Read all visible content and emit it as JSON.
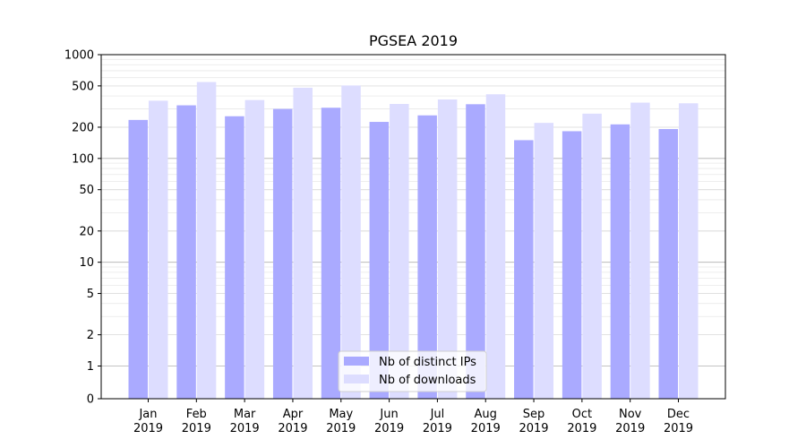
{
  "chart_data": {
    "type": "bar",
    "title": "PGSEA 2019",
    "xlabel": "",
    "ylabel": "",
    "y_scale": "symlog",
    "ylim": [
      0,
      1000
    ],
    "y_ticks": [
      {
        "value": 0,
        "label": "0"
      },
      {
        "value": 1,
        "label": "1"
      },
      {
        "value": 2,
        "label": "2"
      },
      {
        "value": 5,
        "label": "5"
      },
      {
        "value": 10,
        "label": "10"
      },
      {
        "value": 20,
        "label": "20"
      },
      {
        "value": 50,
        "label": "50"
      },
      {
        "value": 100,
        "label": "100"
      },
      {
        "value": 200,
        "label": "200"
      },
      {
        "value": 500,
        "label": "500"
      },
      {
        "value": 1000,
        "label": "1000"
      }
    ],
    "categories": [
      [
        "Jan",
        "2019"
      ],
      [
        "Feb",
        "2019"
      ],
      [
        "Mar",
        "2019"
      ],
      [
        "Apr",
        "2019"
      ],
      [
        "May",
        "2019"
      ],
      [
        "Jun",
        "2019"
      ],
      [
        "Jul",
        "2019"
      ],
      [
        "Aug",
        "2019"
      ],
      [
        "Sep",
        "2019"
      ],
      [
        "Oct",
        "2019"
      ],
      [
        "Nov",
        "2019"
      ],
      [
        "Dec",
        "2019"
      ]
    ],
    "series": [
      {
        "name": "Nb of distinct IPs",
        "color": "#aaaaff",
        "values": [
          235,
          325,
          255,
          300,
          308,
          225,
          260,
          333,
          150,
          183,
          213,
          192
        ]
      },
      {
        "name": "Nb of downloads",
        "color": "#ddddff",
        "values": [
          360,
          545,
          365,
          480,
          505,
          335,
          370,
          415,
          220,
          270,
          345,
          340
        ]
      }
    ],
    "grid": true,
    "legend_position": "bottom-center"
  }
}
